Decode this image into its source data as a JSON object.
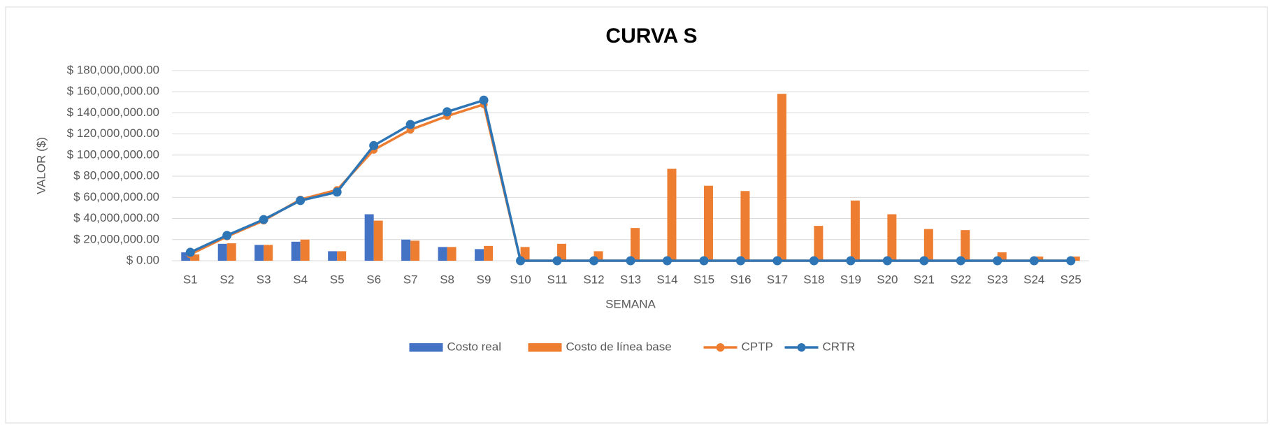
{
  "chart_data": {
    "type": "bar-line",
    "title": "CURVA S",
    "x_label": "SEMANA",
    "y_label": "VALOR ($)",
    "categories": [
      "S1",
      "S2",
      "S3",
      "S4",
      "S5",
      "S6",
      "S7",
      "S8",
      "S9",
      "S10",
      "S11",
      "S12",
      "S13",
      "S14",
      "S15",
      "S16",
      "S17",
      "S18",
      "S19",
      "S20",
      "S21",
      "S22",
      "S23",
      "S24",
      "S25"
    ],
    "series": [
      {
        "name": "Costo real",
        "type": "bar",
        "color": "#4472c4",
        "values": [
          8000000,
          16000000,
          15000000,
          18000000,
          9000000,
          44000000,
          20000000,
          13000000,
          11000000,
          0,
          0,
          0,
          0,
          0,
          0,
          0,
          0,
          0,
          0,
          0,
          0,
          0,
          0,
          0,
          0
        ]
      },
      {
        "name": "Costo de línea base",
        "type": "bar",
        "color": "#ed7d31",
        "values": [
          6000000,
          16500000,
          15000000,
          20000000,
          9000000,
          38000000,
          19000000,
          13000000,
          14000000,
          13000000,
          16000000,
          9000000,
          31000000,
          87000000,
          71000000,
          66000000,
          158000000,
          33000000,
          57000000,
          44000000,
          30000000,
          29000000,
          8000000,
          4000000,
          4000000
        ]
      },
      {
        "name": "CPTP",
        "type": "line",
        "color": "#ed7d31",
        "values": [
          6000000,
          23000000,
          38000000,
          58000000,
          67000000,
          105000000,
          124000000,
          137000000,
          148000000,
          0,
          0,
          0,
          0,
          0,
          0,
          0,
          0,
          0,
          0,
          0,
          0,
          0,
          0,
          0,
          0
        ]
      },
      {
        "name": "CRTR",
        "type": "line",
        "color": "#2e75b6",
        "values": [
          8000000,
          24000000,
          39000000,
          57000000,
          65000000,
          109000000,
          129000000,
          141000000,
          152000000,
          0,
          0,
          0,
          0,
          0,
          0,
          0,
          0,
          0,
          0,
          0,
          0,
          0,
          0,
          0,
          0
        ]
      }
    ],
    "ylim": [
      0,
      180000000
    ],
    "yticks": [
      {
        "value": 0,
        "label": "$ 0.00"
      },
      {
        "value": 20000000,
        "label": "$ 20,000,000.00"
      },
      {
        "value": 40000000,
        "label": "$ 40,000,000.00"
      },
      {
        "value": 60000000,
        "label": "$ 60,000,000.00"
      },
      {
        "value": 80000000,
        "label": "$ 80,000,000.00"
      },
      {
        "value": 100000000,
        "label": "$ 100,000,000.00"
      },
      {
        "value": 120000000,
        "label": "$ 120,000,000.00"
      },
      {
        "value": 140000000,
        "label": "$ 140,000,000.00"
      },
      {
        "value": 160000000,
        "label": "$ 160,000,000.00"
      },
      {
        "value": 180000000,
        "label": "$ 180,000,000.00"
      }
    ],
    "grid": true,
    "legend": "bottom"
  }
}
